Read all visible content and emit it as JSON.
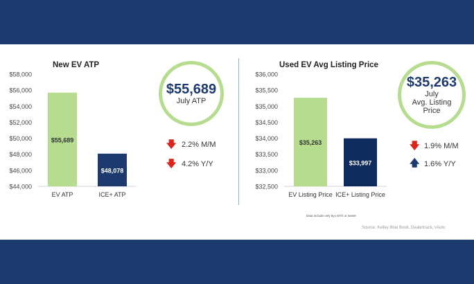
{
  "chart_data": [
    {
      "type": "bar",
      "title": "New EV ATP",
      "categories": [
        "EV ATP",
        "ICE+ ATP"
      ],
      "values": [
        55689,
        48078
      ],
      "data_labels": [
        "$55,689",
        "$48,078"
      ],
      "colors": [
        "#b5dc8f",
        "#1c3a6e"
      ],
      "label_colors": [
        "#333333",
        "#ffffff"
      ],
      "ylim": [
        44000,
        58000
      ],
      "yticks": [
        "$44,000",
        "$46,000",
        "$48,000",
        "$50,000",
        "$52,000",
        "$54,000",
        "$56,000",
        "$58,000"
      ],
      "ytick_values": [
        44000,
        46000,
        48000,
        50000,
        52000,
        54000,
        56000,
        58000
      ],
      "grid": false,
      "xlabel": "",
      "ylabel": ""
    },
    {
      "type": "bar",
      "title": "Used EV Avg Listing Price",
      "categories": [
        "EV Listing Price",
        "ICE+ Listing Price"
      ],
      "values": [
        35263,
        33997
      ],
      "data_labels": [
        "$35,263",
        "$33,997"
      ],
      "colors": [
        "#b5dc8f",
        "#0f2a5c"
      ],
      "label_colors": [
        "#333333",
        "#ffffff"
      ],
      "ylim": [
        32500,
        36000
      ],
      "yticks": [
        "$32,500",
        "$33,000",
        "$33,500",
        "$34,000",
        "$34,500",
        "$35,000",
        "$35,500",
        "$36,000"
      ],
      "ytick_values": [
        32500,
        33000,
        33500,
        34000,
        34500,
        35000,
        35500,
        36000
      ],
      "grid": false,
      "xlabel": "",
      "ylabel": ""
    }
  ],
  "left_callout": {
    "value": "$55,689",
    "label": "July ATP",
    "stats": [
      {
        "direction": "down",
        "text": "2.2% M/M"
      },
      {
        "direction": "down",
        "text": "4.2% Y/Y"
      }
    ]
  },
  "right_callout": {
    "value": "$35,263",
    "label_line1": "July",
    "label_line2": "Avg. Listing",
    "label_line3": "Price",
    "stats": [
      {
        "direction": "down",
        "text": "1.9% M/M"
      },
      {
        "direction": "up",
        "text": "1.6% Y/Y"
      }
    ]
  },
  "footnote": "Data include only 8yo MYs or newer",
  "source": "Source: Kelley Blue Book, Dealertrack, vAuto",
  "colors": {
    "navy": "#1c3a6e",
    "green": "#b5dc8f",
    "down_arrow": "#d9261c"
  },
  "icons": {
    "down": "down-arrow-icon",
    "up": "up-arrow-icon"
  }
}
